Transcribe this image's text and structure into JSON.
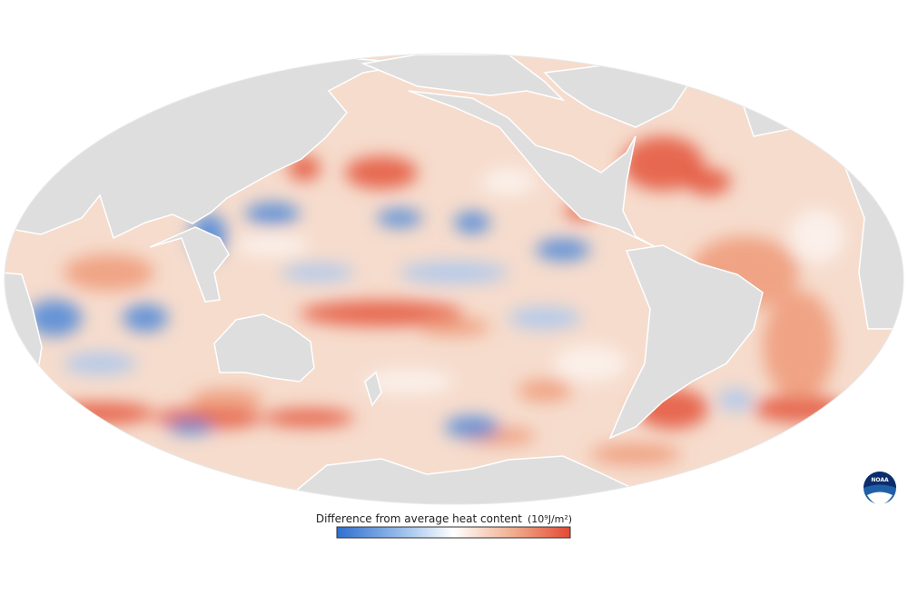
{
  "legend": {
    "title": "Difference from average heat content",
    "unit": "(10⁹J/m²)"
  },
  "logo": {
    "text": "NOAA"
  }
}
